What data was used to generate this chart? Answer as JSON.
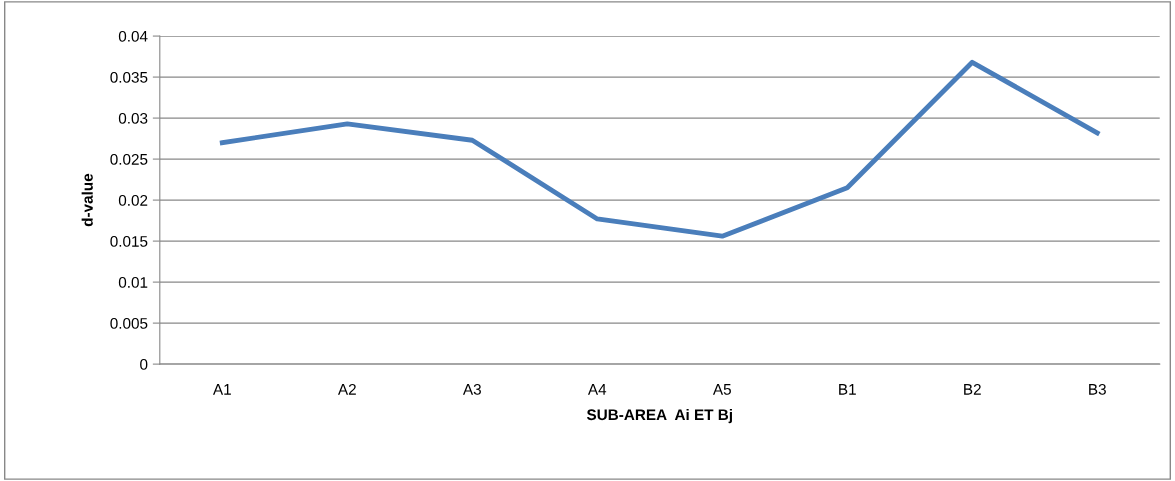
{
  "chart_data": {
    "type": "line",
    "xlabel": "SUB-AREA  Ai ET Bj",
    "ylabel": "d-value",
    "categories": [
      "A1",
      "A2",
      "A3",
      "A4",
      "A5",
      "B1",
      "B2",
      "B3"
    ],
    "series": [
      {
        "color": "#4a7ebb",
        "values": [
          0.027,
          0.0293,
          0.0273,
          0.0177,
          0.0156,
          0.0215,
          0.0368,
          0.0282
        ]
      }
    ],
    "ylim": [
      0,
      0.04
    ],
    "yticks": [
      0,
      0.005,
      0.01,
      0.015,
      0.02,
      0.025,
      0.03,
      0.035,
      0.04
    ],
    "grid": "y",
    "marker": "none",
    "line_style": "solid"
  }
}
